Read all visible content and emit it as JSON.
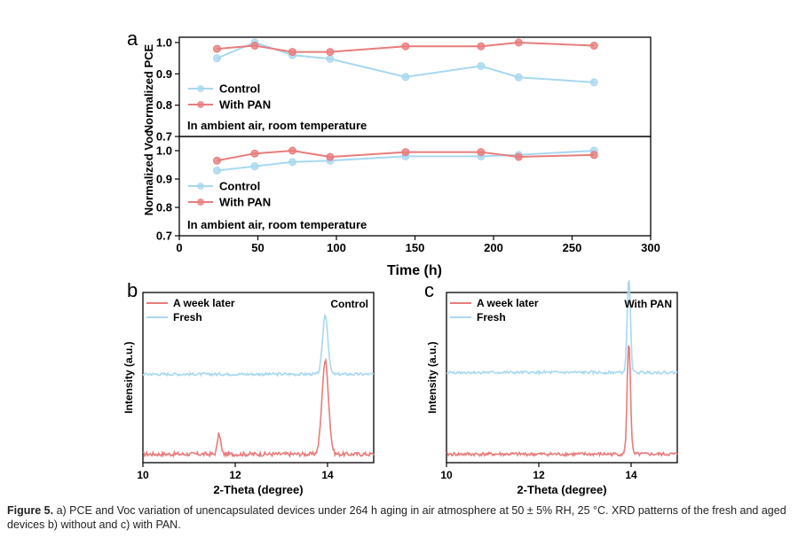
{
  "panels": {
    "a": "a",
    "b": "b",
    "c": "c"
  },
  "caption": {
    "label": "Figure 5.",
    "text": " a) PCE and Voc variation of unencapsulated devices under 264 h aging in air atmosphere at 50 ± 5% RH, 25 °C. XRD patterns of the fresh and aged devices b) without and c) with PAN."
  },
  "colors": {
    "control": "#a8d8f0",
    "with_pan": "#e87c7c",
    "fresh": "#a8d8f0",
    "week_later": "#e87c7c"
  },
  "chart_data": [
    {
      "type": "line",
      "panel": "a-top",
      "ylabel": "Normalized PCE",
      "ylim": [
        0.7,
        1.0
      ],
      "yticks": [
        "0.7",
        "0.8",
        "0.9",
        "1.0"
      ],
      "annotation": "In ambient air, room temperature",
      "legend_position": "lower-left",
      "series": [
        {
          "name": "Control",
          "x": [
            24,
            48,
            72,
            96,
            144,
            192,
            216,
            264
          ],
          "values": [
            0.95,
            1.0,
            0.96,
            0.948,
            0.89,
            0.925,
            0.889,
            0.873
          ]
        },
        {
          "name": "With PAN",
          "x": [
            24,
            48,
            72,
            96,
            144,
            192,
            216,
            264
          ],
          "values": [
            0.98,
            0.99,
            0.97,
            0.97,
            0.988,
            0.988,
            1.0,
            0.99
          ]
        }
      ]
    },
    {
      "type": "line",
      "panel": "a-bottom",
      "ylabel": "Normalized Voc",
      "xlabel": "Time (h)",
      "xlim": [
        0,
        300
      ],
      "xticks": [
        "0",
        "50",
        "100",
        "150",
        "200",
        "250",
        "300"
      ],
      "ylim": [
        0.7,
        1.0
      ],
      "yticks": [
        "0.7",
        "0.8",
        "0.9",
        "1.0"
      ],
      "annotation": "In ambient air, room temperature",
      "legend_position": "lower-left",
      "series": [
        {
          "name": "Control",
          "x": [
            24,
            48,
            72,
            96,
            144,
            192,
            216,
            264
          ],
          "values": [
            0.93,
            0.945,
            0.96,
            0.965,
            0.98,
            0.98,
            0.985,
            1.0
          ]
        },
        {
          "name": "With PAN",
          "x": [
            24,
            48,
            72,
            96,
            144,
            192,
            216,
            264
          ],
          "values": [
            0.965,
            0.99,
            1.0,
            0.978,
            0.995,
            0.995,
            0.978,
            0.985
          ]
        }
      ]
    },
    {
      "type": "line",
      "panel": "b",
      "xlabel": "2-Theta (degree)",
      "ylabel": "Intensity (a.u.)",
      "xlim": [
        10,
        15
      ],
      "xticks": [
        "10",
        "12",
        "14"
      ],
      "annotation": "Control",
      "legend_position": "top-left",
      "series": [
        {
          "name": "A week later",
          "baseline": 0.05,
          "noise": 0.012,
          "peaks": [
            {
              "x": 11.65,
              "h": 0.12,
              "w": 0.05
            },
            {
              "x": 13.95,
              "h": 0.55,
              "w": 0.1
            }
          ]
        },
        {
          "name": "Fresh",
          "baseline": 0.52,
          "noise": 0.008,
          "peaks": [
            {
              "x": 13.95,
              "h": 0.35,
              "w": 0.08
            }
          ]
        }
      ]
    },
    {
      "type": "line",
      "panel": "c",
      "xlabel": "2-Theta (degree)",
      "ylabel": "Intensity (a.u.)",
      "xlim": [
        10,
        15
      ],
      "xticks": [
        "10",
        "12",
        "14"
      ],
      "annotation": "With PAN",
      "legend_position": "top-left",
      "series": [
        {
          "name": "A week later",
          "baseline": 0.05,
          "noise": 0.01,
          "peaks": [
            {
              "x": 13.95,
              "h": 0.66,
              "w": 0.05
            }
          ]
        },
        {
          "name": "Fresh",
          "baseline": 0.53,
          "noise": 0.008,
          "peaks": [
            {
              "x": 13.95,
              "h": 0.55,
              "w": 0.05
            }
          ]
        }
      ]
    }
  ]
}
